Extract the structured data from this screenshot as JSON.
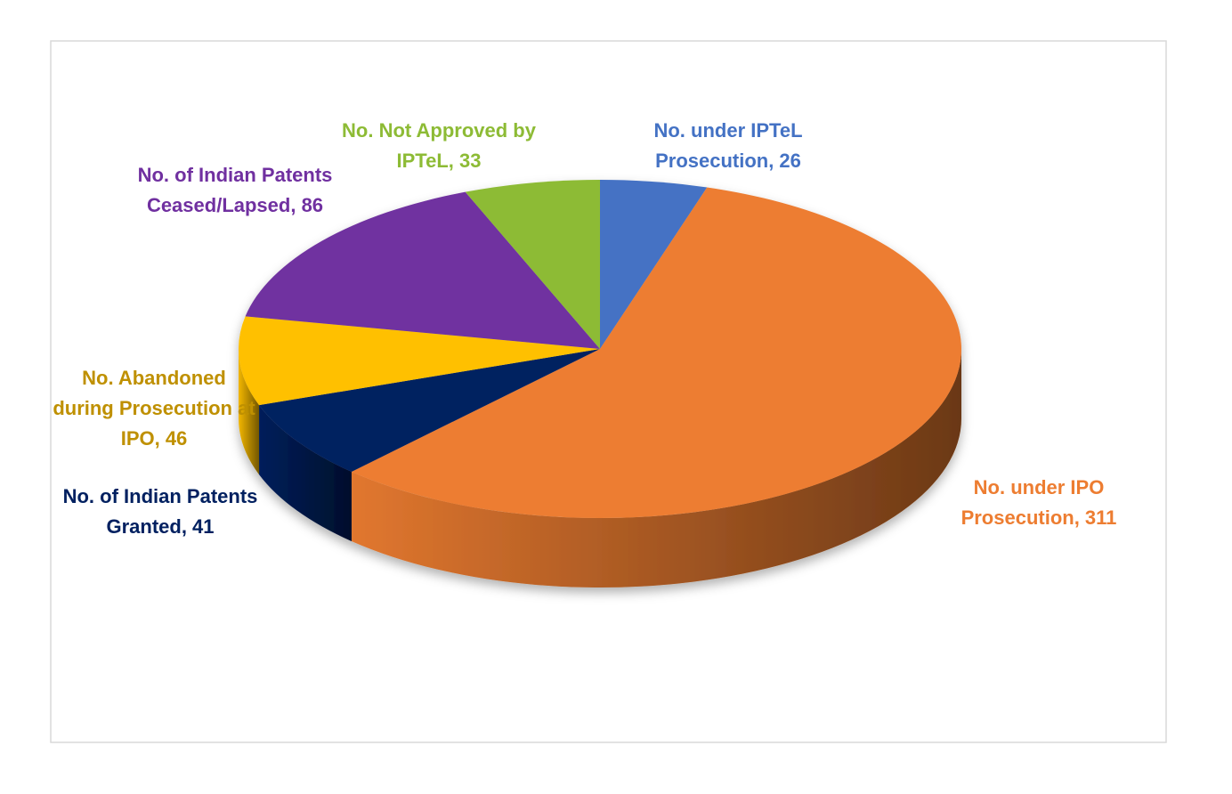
{
  "chart_data": {
    "type": "pie3d",
    "values": [
      26,
      311,
      41,
      46,
      86,
      33
    ],
    "value_labels": [
      "No. under IPTeL Prosecution, 26",
      "No. under IPO Prosecution, 311",
      "No. of Indian Patents Granted, 41",
      "No. Abandoned during Prosecution at IPO, 46",
      "No. of Indian Patents Ceased/Lapsed, 86",
      "No. Not Approved by IPTeL, 33"
    ],
    "colors": [
      "#4472c4",
      "#ed7d31",
      "#002060",
      "#ffc000",
      "#7030a0",
      "#8dbb35"
    ],
    "label_colors": [
      "#4472c4",
      "#ed7d31",
      "#002060",
      "#bf9000",
      "#7030a0",
      "#8dbb35"
    ]
  }
}
